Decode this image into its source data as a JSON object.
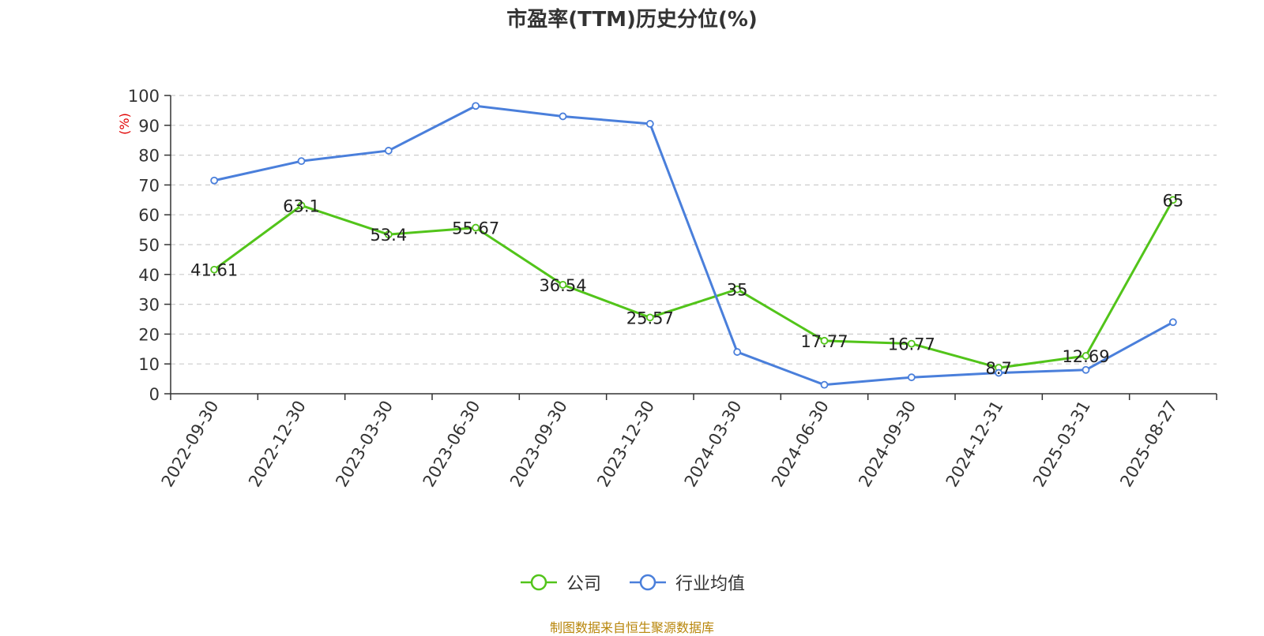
{
  "chart_data": {
    "type": "line",
    "title": "市盈率(TTM)历史分位(%)",
    "ylabel": "(%)",
    "xlabel": "",
    "ylim": [
      0,
      100
    ],
    "yticks": [
      0,
      10,
      20,
      30,
      40,
      50,
      60,
      70,
      80,
      90,
      100
    ],
    "grid": true,
    "legend_position": "bottom-center",
    "categories": [
      "2022-09-30",
      "2022-12-30",
      "2023-03-30",
      "2023-06-30",
      "2023-09-30",
      "2023-12-30",
      "2024-03-30",
      "2024-06-30",
      "2024-09-30",
      "2024-12-31",
      "2025-03-31",
      "2025-08-27"
    ],
    "series": [
      {
        "name": "公司",
        "color": "#52c41a",
        "values": [
          41.61,
          63.1,
          53.4,
          55.67,
          36.54,
          25.57,
          35,
          17.77,
          16.77,
          8.7,
          12.69,
          65
        ],
        "labels": [
          "41.61",
          "63.1",
          "53.4",
          "55.67",
          "36.54",
          "25.57",
          "35",
          "17.77",
          "16.77",
          "8.7",
          "12.69",
          "65"
        ]
      },
      {
        "name": "行业均值",
        "color": "#4a7fdb",
        "values": [
          71.5,
          78,
          81.5,
          96.5,
          93,
          90.5,
          14,
          3,
          5.5,
          7,
          8,
          24
        ]
      }
    ]
  },
  "source": "制图数据来自恒生聚源数据库"
}
